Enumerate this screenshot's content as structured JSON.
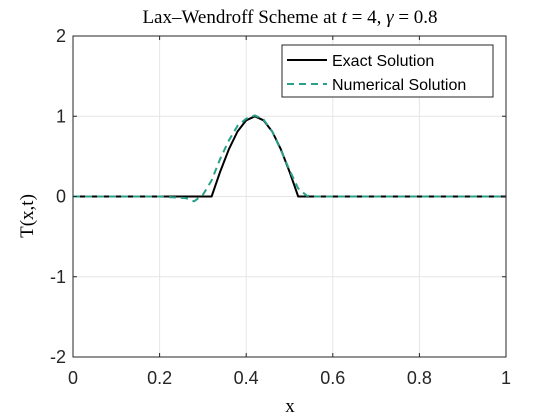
{
  "chart_data": {
    "type": "line",
    "title": "Lax–Wendroff Scheme at t = 4,  γ = 0.8",
    "title_parts": {
      "prefix": "Lax–Wendroff Scheme at ",
      "t_symbol": "t",
      "t_value": " = 4,  ",
      "gamma_symbol": "γ",
      "gamma_value": " = 0.8"
    },
    "xlabel": "x",
    "ylabel": "T(x,t)",
    "xlim": [
      0,
      1
    ],
    "ylim": [
      -2,
      2
    ],
    "xticks": [
      0,
      0.2,
      0.4,
      0.6,
      0.8,
      1
    ],
    "xtick_labels": [
      "0",
      "0.2",
      "0.4",
      "0.6",
      "0.8",
      "1"
    ],
    "yticks": [
      -2,
      -1,
      0,
      1,
      2
    ],
    "ytick_labels": [
      "-2",
      "-1",
      "0",
      "1",
      "2"
    ],
    "grid": true,
    "legend_position": "top-right",
    "colors": {
      "exact": "#000000",
      "numerical": "#2aa08a",
      "grid": "#e6e6e6",
      "axis": "#262626"
    },
    "series": [
      {
        "name": "Exact Solution",
        "style": "solid",
        "x": [
          0,
          0.2,
          0.32,
          0.34,
          0.36,
          0.38,
          0.4,
          0.42,
          0.44,
          0.46,
          0.48,
          0.5,
          0.52,
          0.6,
          0.8,
          1.0
        ],
        "y": [
          0,
          0,
          0,
          0.31,
          0.59,
          0.81,
          0.95,
          1.0,
          0.95,
          0.81,
          0.59,
          0.31,
          0,
          0,
          0,
          0
        ]
      },
      {
        "name": "Numerical Solution",
        "style": "dashed",
        "x": [
          0,
          0.2,
          0.26,
          0.28,
          0.3,
          0.32,
          0.34,
          0.36,
          0.38,
          0.4,
          0.42,
          0.44,
          0.46,
          0.48,
          0.5,
          0.52,
          0.54,
          0.56,
          0.6,
          0.8,
          1.0
        ],
        "y": [
          0,
          0,
          -0.02,
          -0.06,
          0.02,
          0.2,
          0.47,
          0.7,
          0.88,
          0.97,
          1.01,
          0.96,
          0.81,
          0.58,
          0.33,
          0.1,
          0.01,
          0,
          0,
          0,
          0
        ]
      }
    ]
  }
}
